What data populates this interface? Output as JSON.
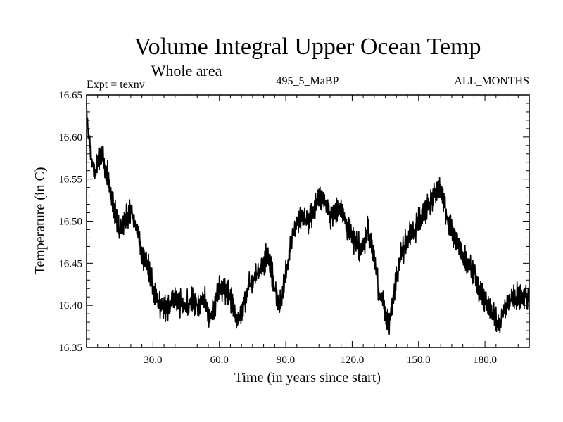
{
  "chart_data": {
    "type": "line",
    "title": "Volume Integral Upper Ocean Temp",
    "subtitle": "Whole area",
    "experiment_label": "Expt = texnv",
    "run_label": "495_5_MaBP",
    "months_label": "ALL_MONTHS",
    "xlabel": "Time (in years since start)",
    "ylabel": "Temperature (in C)",
    "xlim": [
      0,
      200
    ],
    "ylim": [
      16.35,
      16.65
    ],
    "x_ticks": [
      30,
      60,
      90,
      120,
      150,
      180
    ],
    "x_tick_labels": [
      "30.0",
      "60.0",
      "90.0",
      "120.0",
      "150.0",
      "180.0"
    ],
    "y_ticks": [
      16.35,
      16.4,
      16.45,
      16.5,
      16.55,
      16.6,
      16.65
    ],
    "y_tick_labels": [
      "16.35",
      "16.40",
      "16.45",
      "16.50",
      "16.55",
      "16.60",
      "16.65"
    ],
    "line_color": "#000000",
    "series": [
      {
        "name": "Volume integral upper ocean temperature",
        "x": [
          0,
          1,
          2,
          3,
          4,
          5,
          7,
          10,
          12,
          15,
          17,
          20,
          23,
          25,
          28,
          30,
          33,
          35,
          38,
          40,
          43,
          45,
          48,
          50,
          53,
          55,
          57,
          60,
          62,
          65,
          66,
          68,
          70,
          73,
          75,
          78,
          80,
          82,
          83,
          85,
          87,
          88,
          90,
          93,
          95,
          98,
          100,
          103,
          105,
          108,
          110,
          113,
          115,
          118,
          120,
          123,
          125,
          127,
          128,
          130,
          132,
          133,
          135,
          137,
          138,
          140,
          142,
          145,
          148,
          150,
          153,
          155,
          157,
          158,
          160,
          162,
          163,
          165,
          167,
          170,
          172,
          175,
          177,
          180,
          182,
          183,
          185,
          187,
          190,
          192,
          195,
          197,
          200
        ],
        "values": [
          16.64,
          16.6,
          16.58,
          16.56,
          16.56,
          16.57,
          16.58,
          16.55,
          16.52,
          16.49,
          16.5,
          16.515,
          16.49,
          16.46,
          16.45,
          16.42,
          16.4,
          16.395,
          16.4,
          16.41,
          16.4,
          16.4,
          16.405,
          16.4,
          16.41,
          16.39,
          16.39,
          16.42,
          16.42,
          16.41,
          16.4,
          16.38,
          16.39,
          16.42,
          16.43,
          16.44,
          16.45,
          16.46,
          16.45,
          16.42,
          16.4,
          16.4,
          16.44,
          16.48,
          16.5,
          16.505,
          16.5,
          16.515,
          16.53,
          16.52,
          16.505,
          16.51,
          16.515,
          16.49,
          16.48,
          16.47,
          16.47,
          16.49,
          16.48,
          16.46,
          16.42,
          16.41,
          16.39,
          16.38,
          16.4,
          16.43,
          16.46,
          16.48,
          16.49,
          16.5,
          16.51,
          16.52,
          16.53,
          16.535,
          16.54,
          16.52,
          16.5,
          16.49,
          16.48,
          16.46,
          16.45,
          16.44,
          16.42,
          16.405,
          16.4,
          16.39,
          16.38,
          16.38,
          16.4,
          16.41,
          16.41,
          16.41,
          16.41
        ]
      }
    ],
    "noise_amplitude": 0.014,
    "samples_per_year": 4
  }
}
